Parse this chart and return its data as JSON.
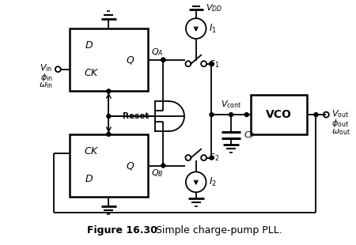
{
  "title": "Figure 16.30",
  "subtitle": "Simple charge-pump PLL.",
  "bg_color": "#ffffff",
  "line_color": "#000000",
  "fig_width": 4.5,
  "fig_height": 3.1,
  "dpi": 100
}
